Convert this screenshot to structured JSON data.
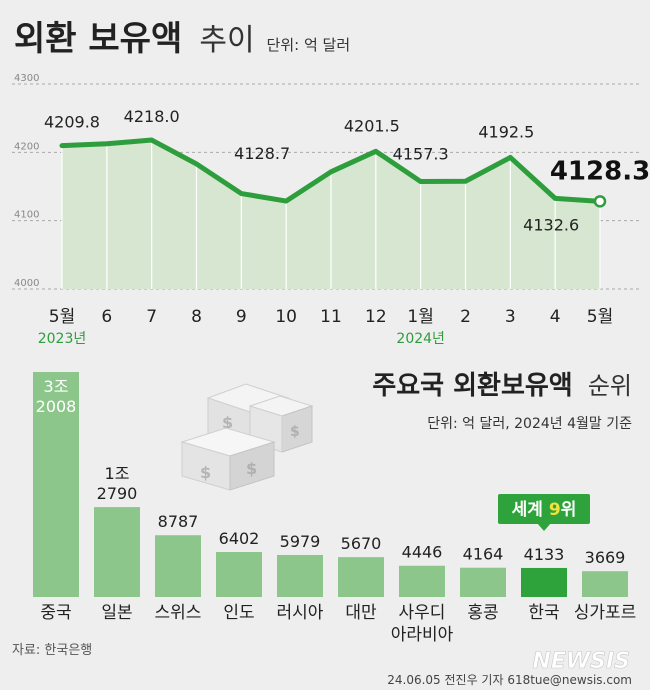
{
  "chart_data": [
    {
      "type": "area",
      "title": "외환 보유액",
      "title_suffix": "추이",
      "unit": "단위: 억 달러",
      "categories": [
        "5월",
        "6",
        "7",
        "8",
        "9",
        "10",
        "11",
        "12",
        "1월",
        "2",
        "3",
        "4",
        "5월"
      ],
      "year_labels": [
        {
          "index": 0,
          "label": "2023년"
        },
        {
          "index": 8,
          "label": "2024년"
        }
      ],
      "values": [
        4209.8,
        4212.5,
        4218.0,
        4183.0,
        4139.7,
        4128.7,
        4171.5,
        4201.5,
        4157.3,
        4157.7,
        4192.5,
        4132.6,
        4128.3
      ],
      "value_labels": [
        {
          "index": 0,
          "text": "4209.8"
        },
        {
          "index": 2,
          "text": "4218.0"
        },
        {
          "index": 5,
          "text": "4128.7"
        },
        {
          "index": 7,
          "text": "4201.5"
        },
        {
          "index": 8,
          "text": "4157.3"
        },
        {
          "index": 10,
          "text": "4192.5"
        },
        {
          "index": 11,
          "text": "4132.6"
        },
        {
          "index": 12,
          "text": "4128.3"
        }
      ],
      "ylim": [
        4000,
        4300
      ],
      "gridlines": [
        "4300",
        "4200",
        "4100",
        "4000"
      ],
      "grid": true,
      "colors": {
        "line": "#2e9d3c",
        "area": "#d6e6d0"
      }
    },
    {
      "type": "bar",
      "title": "주요국 외환보유액",
      "title_suffix": "순위",
      "unit": "단위: 억 달러, 2024년 4월말 기준",
      "categories": [
        "중국",
        "일본",
        "스위스",
        "인도",
        "러시아",
        "대만",
        "사우디 아라비아",
        "홍콩",
        "한국",
        "싱가포르"
      ],
      "values": [
        32008,
        12790,
        8787,
        6402,
        5979,
        5670,
        4446,
        4164,
        4133,
        3669
      ],
      "value_labels": [
        "3조 2008",
        "1조 2790",
        "8787",
        "6402",
        "5979",
        "5670",
        "4446",
        "4164",
        "4133",
        "3669"
      ],
      "highlight_index": 8,
      "badge": {
        "prefix": "세계 ",
        "rank": "9",
        "suffix": "위"
      },
      "colors": {
        "bar": "#8cc68a",
        "highlight": "#2ea23b",
        "badge": "#2ea23b"
      }
    }
  ],
  "footer": {
    "source": "자료: 한국은행",
    "credit": "24.06.05 전진우 기자 618tue@newsis.com",
    "logo": "NEWSIS"
  }
}
